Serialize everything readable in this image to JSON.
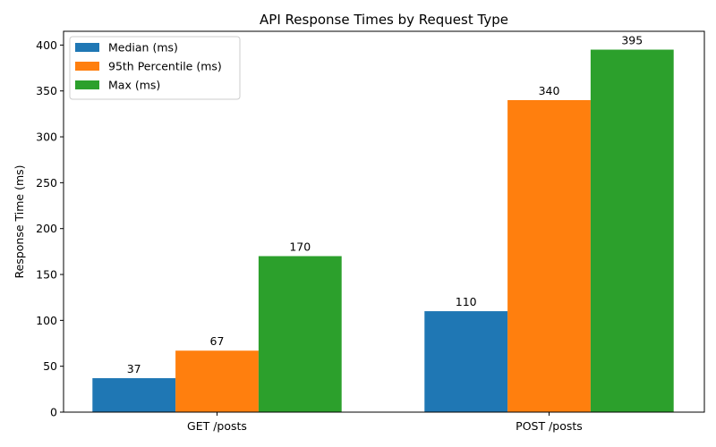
{
  "chart_data": {
    "type": "bar",
    "title": "API Response Times by Request Type",
    "xlabel": "",
    "ylabel": "Response Time (ms)",
    "categories": [
      "GET /posts",
      "POST /posts"
    ],
    "series": [
      {
        "name": "Median (ms)",
        "values": [
          37,
          110
        ],
        "color": "#1f77b4"
      },
      {
        "name": "95th Percentile (ms)",
        "values": [
          67,
          340
        ],
        "color": "#ff7f0e"
      },
      {
        "name": "Max (ms)",
        "values": [
          170,
          395
        ],
        "color": "#2ca02c"
      }
    ],
    "ylim": [
      0,
      415
    ],
    "yticks": [
      0,
      50,
      100,
      150,
      200,
      250,
      300,
      350,
      400
    ],
    "grid": false,
    "legend_position": "upper left",
    "data_labels": true
  }
}
